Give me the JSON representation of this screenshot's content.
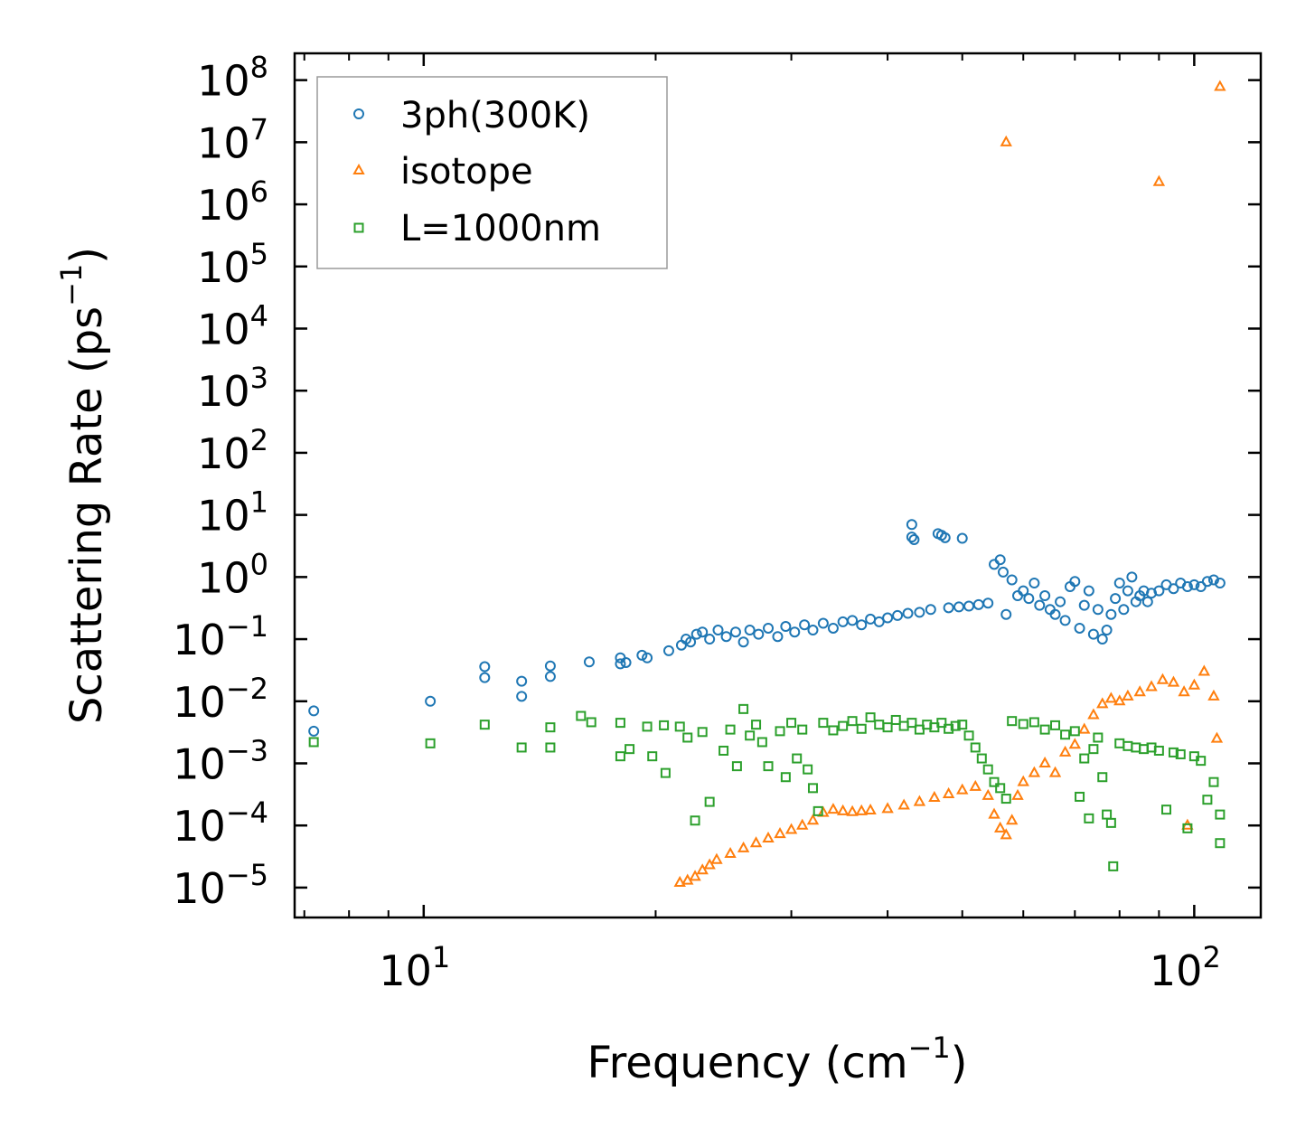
{
  "chart_data": {
    "type": "scatter",
    "title": "",
    "xlabel": "Frequency (cm",
    "xlabel_sup": "−1",
    "xlabel_tail": ")",
    "ylabel": "Scattering Rate (ps",
    "ylabel_sup": "−1",
    "ylabel_tail": ")",
    "xscale": "log",
    "yscale": "log",
    "xlim": [
      6.8,
      122
    ],
    "ylim": [
      3.3e-06,
      270000000.0
    ],
    "x_ticks": [
      {
        "value": 10,
        "base": "10",
        "exp": "1"
      },
      {
        "value": 100,
        "base": "10",
        "exp": "2"
      }
    ],
    "y_ticks": [
      {
        "value": 100000000.0,
        "base": "10",
        "exp": "8"
      },
      {
        "value": 10000000.0,
        "base": "10",
        "exp": "7"
      },
      {
        "value": 1000000.0,
        "base": "10",
        "exp": "6"
      },
      {
        "value": 100000.0,
        "base": "10",
        "exp": "5"
      },
      {
        "value": 10000.0,
        "base": "10",
        "exp": "4"
      },
      {
        "value": 1000.0,
        "base": "10",
        "exp": "3"
      },
      {
        "value": 100.0,
        "base": "10",
        "exp": "2"
      },
      {
        "value": 10.0,
        "base": "10",
        "exp": "1"
      },
      {
        "value": 1,
        "base": "10",
        "exp": "0"
      },
      {
        "value": 0.1,
        "base": "10",
        "exp": "−1"
      },
      {
        "value": 0.01,
        "base": "10",
        "exp": "−2"
      },
      {
        "value": 0.001,
        "base": "10",
        "exp": "−3"
      },
      {
        "value": 0.0001,
        "base": "10",
        "exp": "−4"
      },
      {
        "value": 1e-05,
        "base": "10",
        "exp": "−5"
      }
    ],
    "legend": {
      "location": "upper-left"
    },
    "series": [
      {
        "name": "3ph(300K)",
        "marker": "circle",
        "color": "#1f77b4",
        "points": [
          [
            7.2,
            0.007
          ],
          [
            7.2,
            0.0033
          ],
          [
            10.2,
            0.01
          ],
          [
            12.0,
            0.036
          ],
          [
            12.0,
            0.024
          ],
          [
            13.4,
            0.021
          ],
          [
            13.4,
            0.012
          ],
          [
            14.6,
            0.037
          ],
          [
            14.6,
            0.025
          ],
          [
            16.4,
            0.043
          ],
          [
            18.0,
            0.05
          ],
          [
            18.0,
            0.04
          ],
          [
            18.3,
            0.042
          ],
          [
            19.2,
            0.055
          ],
          [
            19.5,
            0.05
          ],
          [
            20.8,
            0.065
          ],
          [
            21.6,
            0.08
          ],
          [
            21.9,
            0.1
          ],
          [
            22.2,
            0.09
          ],
          [
            22.6,
            0.12
          ],
          [
            23.0,
            0.13
          ],
          [
            23.5,
            0.1
          ],
          [
            24.1,
            0.14
          ],
          [
            24.7,
            0.11
          ],
          [
            25.4,
            0.13
          ],
          [
            26.0,
            0.09
          ],
          [
            26.5,
            0.14
          ],
          [
            27.2,
            0.12
          ],
          [
            28.0,
            0.15
          ],
          [
            28.8,
            0.11
          ],
          [
            29.5,
            0.16
          ],
          [
            30.3,
            0.13
          ],
          [
            31.2,
            0.17
          ],
          [
            32.0,
            0.14
          ],
          [
            33.0,
            0.18
          ],
          [
            34.0,
            0.15
          ],
          [
            35.0,
            0.19
          ],
          [
            36.0,
            0.2
          ],
          [
            37.0,
            0.17
          ],
          [
            38.0,
            0.21
          ],
          [
            39.0,
            0.19
          ],
          [
            40.0,
            0.22
          ],
          [
            41.2,
            0.24
          ],
          [
            42.5,
            0.26
          ],
          [
            43.0,
            7.0
          ],
          [
            43.0,
            4.4
          ],
          [
            43.3,
            4.0
          ],
          [
            44.0,
            0.27
          ],
          [
            45.5,
            0.3
          ],
          [
            46.5,
            5.0
          ],
          [
            47.0,
            4.7
          ],
          [
            47.5,
            4.3
          ],
          [
            48.0,
            0.32
          ],
          [
            49.5,
            0.33
          ],
          [
            50.0,
            4.2
          ],
          [
            51.0,
            0.34
          ],
          [
            52.5,
            0.36
          ],
          [
            54.0,
            0.38
          ],
          [
            55.0,
            1.6
          ],
          [
            56.0,
            1.9
          ],
          [
            56.5,
            1.2
          ],
          [
            57.0,
            0.25
          ],
          [
            58.0,
            0.9
          ],
          [
            59.0,
            0.5
          ],
          [
            60.0,
            0.6
          ],
          [
            61.0,
            0.45
          ],
          [
            62.0,
            0.8
          ],
          [
            63.0,
            0.35
          ],
          [
            64.0,
            0.5
          ],
          [
            65.0,
            0.3
          ],
          [
            66.0,
            0.25
          ],
          [
            67.0,
            0.4
          ],
          [
            68.0,
            0.2
          ],
          [
            69.0,
            0.7
          ],
          [
            70.0,
            0.85
          ],
          [
            71.0,
            0.15
          ],
          [
            72.0,
            0.35
          ],
          [
            73.0,
            0.6
          ],
          [
            74.0,
            0.12
          ],
          [
            75.0,
            0.3
          ],
          [
            76.0,
            0.1
          ],
          [
            77.0,
            0.14
          ],
          [
            78.0,
            0.25
          ],
          [
            79.0,
            0.45
          ],
          [
            80.0,
            0.8
          ],
          [
            81.0,
            0.3
          ],
          [
            82.0,
            0.6
          ],
          [
            83.0,
            1.0
          ],
          [
            84.0,
            0.4
          ],
          [
            85.0,
            0.5
          ],
          [
            86.0,
            0.6
          ],
          [
            87.0,
            0.4
          ],
          [
            88.0,
            0.55
          ],
          [
            90.0,
            0.6
          ],
          [
            92.0,
            0.75
          ],
          [
            94.0,
            0.65
          ],
          [
            96.0,
            0.8
          ],
          [
            98.0,
            0.7
          ],
          [
            100.0,
            0.75
          ],
          [
            102.0,
            0.7
          ],
          [
            104.0,
            0.85
          ],
          [
            106.0,
            0.9
          ],
          [
            108.0,
            0.8
          ]
        ]
      },
      {
        "name": "isotope",
        "marker": "triangle",
        "color": "#ff7f0e",
        "points": [
          [
            21.5,
            1.2e-05
          ],
          [
            22.0,
            1.3e-05
          ],
          [
            22.5,
            1.5e-05
          ],
          [
            23.0,
            1.9e-05
          ],
          [
            23.5,
            2.3e-05
          ],
          [
            24.0,
            2.8e-05
          ],
          [
            25.0,
            3.5e-05
          ],
          [
            26.0,
            4.3e-05
          ],
          [
            27.0,
            5.2e-05
          ],
          [
            28.0,
            6.2e-05
          ],
          [
            29.0,
            7.3e-05
          ],
          [
            30.0,
            8.5e-05
          ],
          [
            31.0,
            0.0001
          ],
          [
            32.0,
            0.00012
          ],
          [
            33.0,
            0.00016
          ],
          [
            34.0,
            0.00018
          ],
          [
            35.0,
            0.00017
          ],
          [
            36.0,
            0.000165
          ],
          [
            37.0,
            0.00017
          ],
          [
            38.0,
            0.000175
          ],
          [
            40.0,
            0.000185
          ],
          [
            42.0,
            0.00021
          ],
          [
            44.0,
            0.00024
          ],
          [
            46.0,
            0.00028
          ],
          [
            48.0,
            0.00032
          ],
          [
            50.0,
            0.00037
          ],
          [
            52.0,
            0.00042
          ],
          [
            54.0,
            0.0003
          ],
          [
            55.0,
            0.00015
          ],
          [
            56.0,
            9e-05
          ],
          [
            57.0,
            7e-05
          ],
          [
            58.0,
            0.00012
          ],
          [
            59.0,
            0.0003
          ],
          [
            60.0,
            0.0005
          ],
          [
            62.0,
            0.0007
          ],
          [
            64.0,
            0.001
          ],
          [
            66.0,
            0.0007
          ],
          [
            68.0,
            0.0015
          ],
          [
            70.0,
            0.002
          ],
          [
            72.0,
            0.0035
          ],
          [
            74.0,
            0.006
          ],
          [
            76.0,
            0.009
          ],
          [
            78.0,
            0.011
          ],
          [
            80.0,
            0.01
          ],
          [
            82.0,
            0.012
          ],
          [
            85.0,
            0.014
          ],
          [
            88.0,
            0.017
          ],
          [
            91.0,
            0.022
          ],
          [
            94.0,
            0.02
          ],
          [
            97.0,
            0.014
          ],
          [
            100.0,
            0.018
          ],
          [
            103.0,
            0.03
          ],
          [
            106.0,
            0.012
          ],
          [
            107.0,
            0.0025
          ],
          [
            98.0,
            0.0001
          ],
          [
            57.0,
            10000000.0
          ],
          [
            90.0,
            2300000.0
          ],
          [
            108.0,
            78000000.0
          ]
        ]
      },
      {
        "name": "L=1000nm",
        "marker": "square",
        "color": "#2ca02c",
        "points": [
          [
            7.2,
            0.0022
          ],
          [
            10.2,
            0.0021
          ],
          [
            12.0,
            0.0042
          ],
          [
            13.4,
            0.0018
          ],
          [
            14.6,
            0.0018
          ],
          [
            14.6,
            0.0038
          ],
          [
            16.0,
            0.0058
          ],
          [
            16.5,
            0.0046
          ],
          [
            18.0,
            0.0013
          ],
          [
            18.0,
            0.0045
          ],
          [
            18.5,
            0.0017
          ],
          [
            19.5,
            0.0039
          ],
          [
            19.8,
            0.0013
          ],
          [
            20.5,
            0.0041
          ],
          [
            20.6,
            0.0007
          ],
          [
            21.5,
            0.0039
          ],
          [
            22.0,
            0.0026
          ],
          [
            22.5,
            0.00012
          ],
          [
            23.0,
            0.0032
          ],
          [
            23.5,
            0.00024
          ],
          [
            24.5,
            0.0016
          ],
          [
            25.0,
            0.0035
          ],
          [
            25.5,
            0.0009
          ],
          [
            26.0,
            0.0075
          ],
          [
            26.5,
            0.0028
          ],
          [
            27.0,
            0.0042
          ],
          [
            27.5,
            0.0022
          ],
          [
            28.0,
            0.0009
          ],
          [
            29.0,
            0.0033
          ],
          [
            29.5,
            0.0006
          ],
          [
            30.0,
            0.0045
          ],
          [
            30.5,
            0.0012
          ],
          [
            31.0,
            0.0035
          ],
          [
            31.5,
            0.0008
          ],
          [
            32.0,
            0.0004
          ],
          [
            32.5,
            0.00017
          ],
          [
            33.0,
            0.0045
          ],
          [
            34.0,
            0.0034
          ],
          [
            35.0,
            0.004
          ],
          [
            36.0,
            0.0048
          ],
          [
            37.0,
            0.0036
          ],
          [
            38.0,
            0.0055
          ],
          [
            39.0,
            0.0042
          ],
          [
            40.0,
            0.0038
          ],
          [
            41.0,
            0.005
          ],
          [
            42.0,
            0.004
          ],
          [
            43.0,
            0.0045
          ],
          [
            44.0,
            0.0035
          ],
          [
            45.0,
            0.0042
          ],
          [
            46.0,
            0.0038
          ],
          [
            47.0,
            0.0045
          ],
          [
            48.0,
            0.0036
          ],
          [
            49.0,
            0.004
          ],
          [
            50.0,
            0.0042
          ],
          [
            51.0,
            0.0028
          ],
          [
            52.0,
            0.0018
          ],
          [
            53.0,
            0.0012
          ],
          [
            54.0,
            0.0008
          ],
          [
            55.0,
            0.0005
          ],
          [
            56.0,
            0.0004
          ],
          [
            57.0,
            0.00027
          ],
          [
            58.0,
            0.0048
          ],
          [
            60.0,
            0.0043
          ],
          [
            62.0,
            0.0046
          ],
          [
            64.0,
            0.0035
          ],
          [
            66.0,
            0.0041
          ],
          [
            68.0,
            0.0029
          ],
          [
            70.0,
            0.0033
          ],
          [
            71.0,
            0.00029
          ],
          [
            72.0,
            0.0012
          ],
          [
            73.0,
            0.00013
          ],
          [
            74.0,
            0.0017
          ],
          [
            75.0,
            0.0026
          ],
          [
            76.0,
            0.0006
          ],
          [
            77.0,
            0.00015
          ],
          [
            78.0,
            0.00011
          ],
          [
            78.5,
            2.2e-05
          ],
          [
            80.0,
            0.0021
          ],
          [
            82.0,
            0.0019
          ],
          [
            84.0,
            0.0018
          ],
          [
            86.0,
            0.0017
          ],
          [
            88.0,
            0.0018
          ],
          [
            90.0,
            0.0016
          ],
          [
            92.0,
            0.00018
          ],
          [
            94.0,
            0.0015
          ],
          [
            96.0,
            0.0014
          ],
          [
            98.0,
            9e-05
          ],
          [
            100.0,
            0.0013
          ],
          [
            102.0,
            0.0011
          ],
          [
            104.0,
            0.00026
          ],
          [
            106.0,
            0.0005
          ],
          [
            108.0,
            0.00015
          ],
          [
            108.0,
            5.2e-05
          ]
        ]
      }
    ]
  }
}
